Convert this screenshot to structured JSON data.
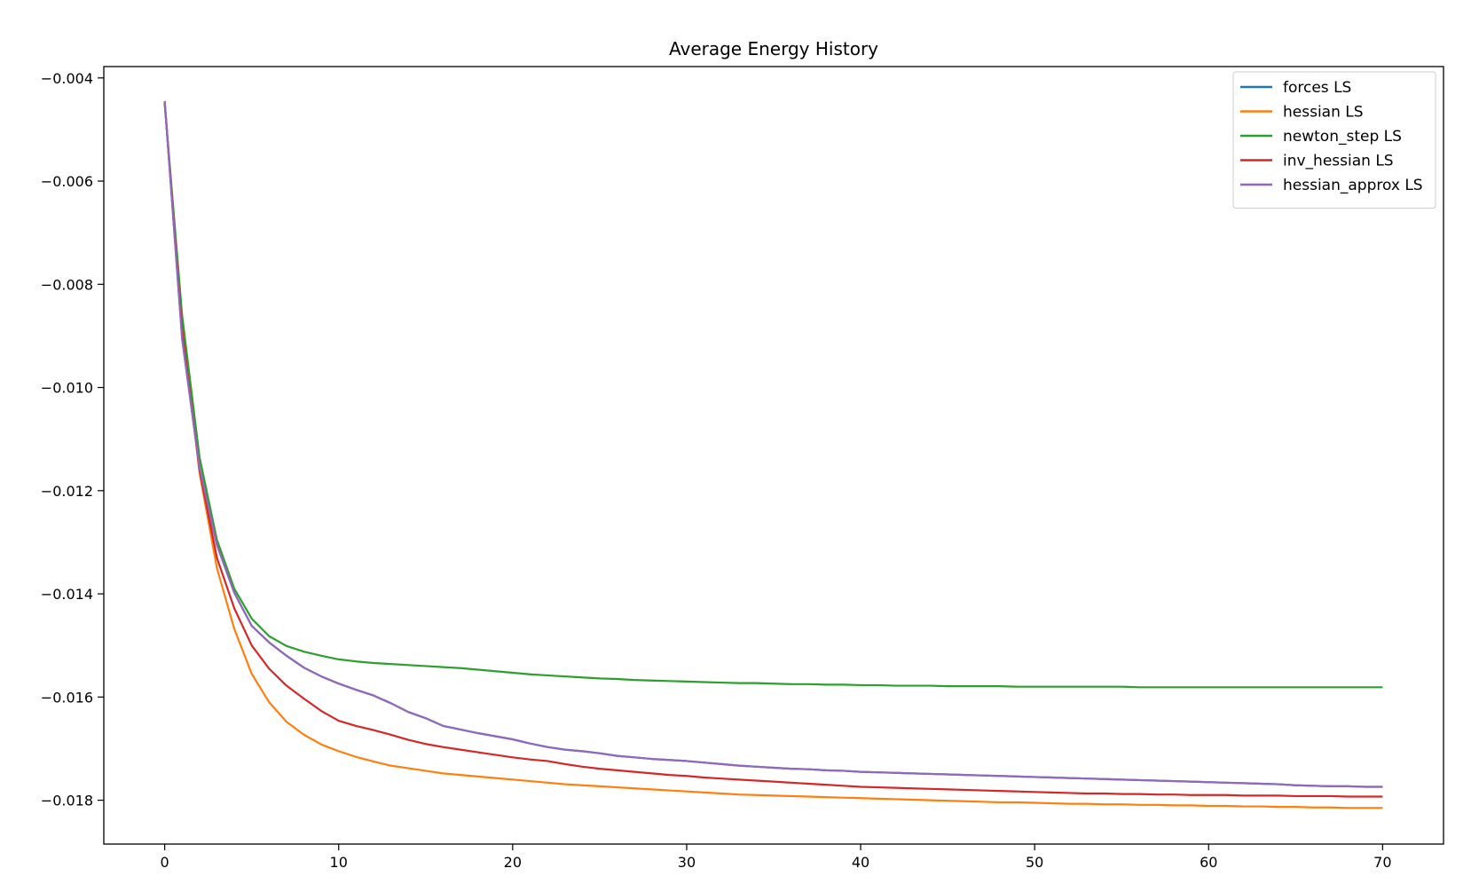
{
  "chart_data": {
    "type": "line",
    "title": "Average Energy History",
    "xlabel": "",
    "ylabel": "",
    "xlim": [
      -3.5,
      73.5
    ],
    "ylim": [
      -0.01885,
      -0.00378
    ],
    "xticks": [
      0,
      10,
      20,
      30,
      40,
      50,
      60,
      70
    ],
    "xtick_labels": [
      "0",
      "10",
      "20",
      "30",
      "40",
      "50",
      "60",
      "70"
    ],
    "yticks": [
      -0.004,
      -0.006,
      -0.008,
      -0.01,
      -0.012,
      -0.014,
      -0.016,
      -0.018
    ],
    "ytick_labels": [
      "−0.004",
      "−0.006",
      "−0.008",
      "−0.010",
      "−0.012",
      "−0.014",
      "−0.016",
      "−0.018"
    ],
    "grid": false,
    "legend_position": "top-right",
    "x": [
      0,
      1,
      2,
      3,
      4,
      5,
      6,
      7,
      8,
      9,
      10,
      11,
      12,
      13,
      14,
      15,
      16,
      17,
      18,
      19,
      20,
      21,
      22,
      23,
      24,
      25,
      26,
      27,
      28,
      29,
      30,
      31,
      32,
      33,
      34,
      35,
      36,
      37,
      38,
      39,
      40,
      41,
      42,
      43,
      44,
      45,
      46,
      47,
      48,
      49,
      50,
      51,
      52,
      53,
      54,
      55,
      56,
      57,
      58,
      59,
      60,
      61,
      62,
      63,
      64,
      65,
      66,
      67,
      68,
      69,
      70
    ],
    "series": [
      {
        "name": "forces LS",
        "color": "#1f77b4",
        "values": [
          -0.00445,
          -0.00905,
          -0.01155,
          -0.01305,
          -0.01398,
          -0.01462,
          -0.01494,
          -0.0152,
          -0.01543,
          -0.0156,
          -0.01574,
          -0.01586,
          -0.01597,
          -0.01612,
          -0.01629,
          -0.01641,
          -0.01656,
          -0.01663,
          -0.0167,
          -0.01676,
          -0.01682,
          -0.0169,
          -0.01697,
          -0.01702,
          -0.01705,
          -0.01709,
          -0.01714,
          -0.01717,
          -0.0172,
          -0.01722,
          -0.01724,
          -0.01727,
          -0.0173,
          -0.01733,
          -0.01735,
          -0.01737,
          -0.01739,
          -0.0174,
          -0.01742,
          -0.01743,
          -0.01745,
          -0.01746,
          -0.01747,
          -0.01748,
          -0.01749,
          -0.0175,
          -0.01751,
          -0.01752,
          -0.01753,
          -0.01754,
          -0.01755,
          -0.01756,
          -0.01757,
          -0.01758,
          -0.01759,
          -0.0176,
          -0.01761,
          -0.01762,
          -0.01763,
          -0.01764,
          -0.01765,
          -0.01766,
          -0.01767,
          -0.01768,
          -0.01769,
          -0.01771,
          -0.01772,
          -0.01773,
          -0.01773,
          -0.01774,
          -0.01774
        ]
      },
      {
        "name": "hessian LS",
        "color": "#ff7f0e",
        "values": [
          -0.00448,
          -0.00875,
          -0.01165,
          -0.0135,
          -0.01468,
          -0.01555,
          -0.0161,
          -0.01648,
          -0.01673,
          -0.01692,
          -0.01705,
          -0.01716,
          -0.01725,
          -0.01733,
          -0.01738,
          -0.01743,
          -0.01748,
          -0.01751,
          -0.01754,
          -0.01757,
          -0.0176,
          -0.01763,
          -0.01766,
          -0.01769,
          -0.01771,
          -0.01773,
          -0.01775,
          -0.01777,
          -0.01779,
          -0.01781,
          -0.01783,
          -0.01785,
          -0.01787,
          -0.01789,
          -0.0179,
          -0.01791,
          -0.01792,
          -0.01793,
          -0.01794,
          -0.01795,
          -0.01796,
          -0.01797,
          -0.01798,
          -0.01799,
          -0.018,
          -0.01801,
          -0.01802,
          -0.01803,
          -0.01804,
          -0.01804,
          -0.01805,
          -0.01806,
          -0.01807,
          -0.01807,
          -0.01808,
          -0.01808,
          -0.01809,
          -0.01809,
          -0.0181,
          -0.0181,
          -0.01811,
          -0.01811,
          -0.01812,
          -0.01812,
          -0.01813,
          -0.01813,
          -0.01814,
          -0.01814,
          -0.01815,
          -0.01815,
          -0.01815
        ]
      },
      {
        "name": "newton_step LS",
        "color": "#2ca02c",
        "values": [
          -0.0045,
          -0.0086,
          -0.01135,
          -0.01295,
          -0.0139,
          -0.01448,
          -0.01482,
          -0.01501,
          -0.01512,
          -0.0152,
          -0.01527,
          -0.01531,
          -0.01534,
          -0.01536,
          -0.01538,
          -0.0154,
          -0.01542,
          -0.01544,
          -0.01547,
          -0.0155,
          -0.01553,
          -0.01556,
          -0.01558,
          -0.0156,
          -0.01562,
          -0.01564,
          -0.01565,
          -0.01567,
          -0.01568,
          -0.01569,
          -0.0157,
          -0.01571,
          -0.01572,
          -0.01573,
          -0.01573,
          -0.01574,
          -0.01575,
          -0.01575,
          -0.01576,
          -0.01576,
          -0.01577,
          -0.01577,
          -0.01578,
          -0.01578,
          -0.01578,
          -0.01579,
          -0.01579,
          -0.01579,
          -0.01579,
          -0.0158,
          -0.0158,
          -0.0158,
          -0.0158,
          -0.0158,
          -0.0158,
          -0.0158,
          -0.01581,
          -0.01581,
          -0.01581,
          -0.01581,
          -0.01581,
          -0.01581,
          -0.01581,
          -0.01581,
          -0.01581,
          -0.01581,
          -0.01581,
          -0.01581,
          -0.01581,
          -0.01581,
          -0.01581
        ]
      },
      {
        "name": "inv_hessian LS",
        "color": "#d62728",
        "values": [
          -0.00448,
          -0.0089,
          -0.0116,
          -0.0133,
          -0.01428,
          -0.015,
          -0.01545,
          -0.01578,
          -0.01603,
          -0.01627,
          -0.01646,
          -0.01656,
          -0.01664,
          -0.01673,
          -0.01683,
          -0.01691,
          -0.01697,
          -0.01702,
          -0.01707,
          -0.01712,
          -0.01717,
          -0.01721,
          -0.01724,
          -0.0173,
          -0.01735,
          -0.01739,
          -0.01742,
          -0.01745,
          -0.01748,
          -0.01751,
          -0.01753,
          -0.01756,
          -0.01758,
          -0.0176,
          -0.01762,
          -0.01764,
          -0.01766,
          -0.01768,
          -0.0177,
          -0.01772,
          -0.01774,
          -0.01775,
          -0.01776,
          -0.01777,
          -0.01778,
          -0.01779,
          -0.0178,
          -0.01781,
          -0.01782,
          -0.01783,
          -0.01784,
          -0.01785,
          -0.01786,
          -0.01787,
          -0.01787,
          -0.01788,
          -0.01788,
          -0.01789,
          -0.01789,
          -0.0179,
          -0.0179,
          -0.0179,
          -0.01791,
          -0.01791,
          -0.01791,
          -0.01792,
          -0.01792,
          -0.01792,
          -0.01793,
          -0.01793,
          -0.01793
        ]
      },
      {
        "name": "hessian_approx LS",
        "color": "#9467bd",
        "values": [
          -0.00445,
          -0.00905,
          -0.01155,
          -0.01305,
          -0.01398,
          -0.01462,
          -0.01494,
          -0.0152,
          -0.01543,
          -0.0156,
          -0.01574,
          -0.01586,
          -0.01597,
          -0.01612,
          -0.01629,
          -0.01641,
          -0.01656,
          -0.01663,
          -0.0167,
          -0.01676,
          -0.01682,
          -0.0169,
          -0.01697,
          -0.01702,
          -0.01705,
          -0.01709,
          -0.01714,
          -0.01717,
          -0.0172,
          -0.01722,
          -0.01724,
          -0.01727,
          -0.0173,
          -0.01733,
          -0.01735,
          -0.01737,
          -0.01739,
          -0.0174,
          -0.01742,
          -0.01743,
          -0.01745,
          -0.01746,
          -0.01747,
          -0.01748,
          -0.01749,
          -0.0175,
          -0.01751,
          -0.01752,
          -0.01753,
          -0.01754,
          -0.01755,
          -0.01756,
          -0.01757,
          -0.01758,
          -0.01759,
          -0.0176,
          -0.01761,
          -0.01762,
          -0.01763,
          -0.01764,
          -0.01765,
          -0.01766,
          -0.01767,
          -0.01768,
          -0.01769,
          -0.01771,
          -0.01772,
          -0.01773,
          -0.01773,
          -0.01774,
          -0.01774
        ]
      }
    ]
  }
}
